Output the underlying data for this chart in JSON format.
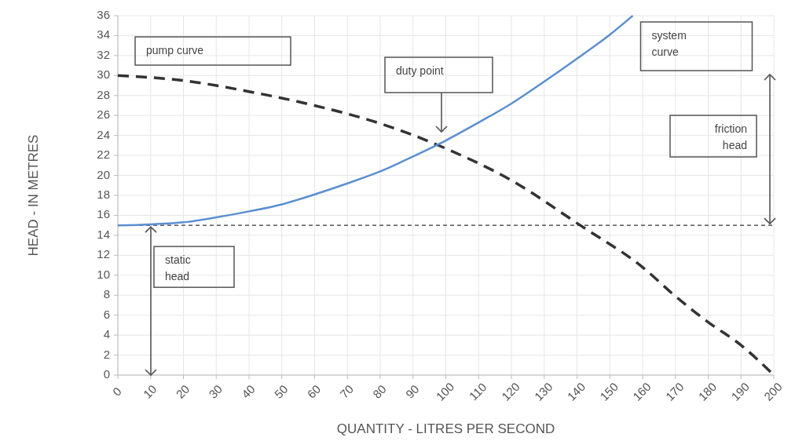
{
  "chart_data": {
    "type": "line",
    "xlabel": "QUANTITY - LITRES PER SECOND",
    "ylabel": "HEAD - IN METRES",
    "xlim": [
      0,
      200
    ],
    "xticks": [
      0,
      10,
      20,
      30,
      40,
      50,
      60,
      70,
      80,
      90,
      100,
      110,
      120,
      130,
      140,
      150,
      160,
      170,
      180,
      190,
      200
    ],
    "ylim": [
      0,
      36
    ],
    "yticks": [
      0,
      2,
      4,
      6,
      8,
      10,
      12,
      14,
      16,
      18,
      20,
      22,
      24,
      26,
      28,
      30,
      32,
      34,
      36
    ],
    "grid": true,
    "marker": "none",
    "series": [
      {
        "name": "pump curve",
        "color": "#333333",
        "line_style": "dashed",
        "x": [
          0,
          20,
          40,
          60,
          80,
          100,
          120,
          141,
          160,
          170,
          180,
          190,
          200
        ],
        "values": [
          30,
          29.5,
          28.4,
          27,
          25.2,
          22.7,
          19.5,
          15,
          10.8,
          7.9,
          5.3,
          3,
          0
        ]
      },
      {
        "name": "system curve",
        "color": "#5b8fd0",
        "line_style": "solid",
        "x": [
          0,
          10,
          20,
          30,
          40,
          50,
          60,
          70,
          80,
          90,
          100,
          110,
          120,
          130,
          140,
          150,
          157
        ],
        "values": [
          15,
          15.1,
          15.3,
          15.8,
          16.4,
          17.1,
          18.1,
          19.2,
          20.4,
          21.9,
          23.5,
          25.3,
          27.2,
          29.4,
          31.7,
          34.1,
          36
        ]
      }
    ],
    "ref_lines": [
      {
        "axis": "y",
        "value": 15,
        "color": "#333333",
        "line_style": "dashed"
      }
    ],
    "annotations": [
      "duty point",
      "friction head",
      "static head"
    ]
  }
}
